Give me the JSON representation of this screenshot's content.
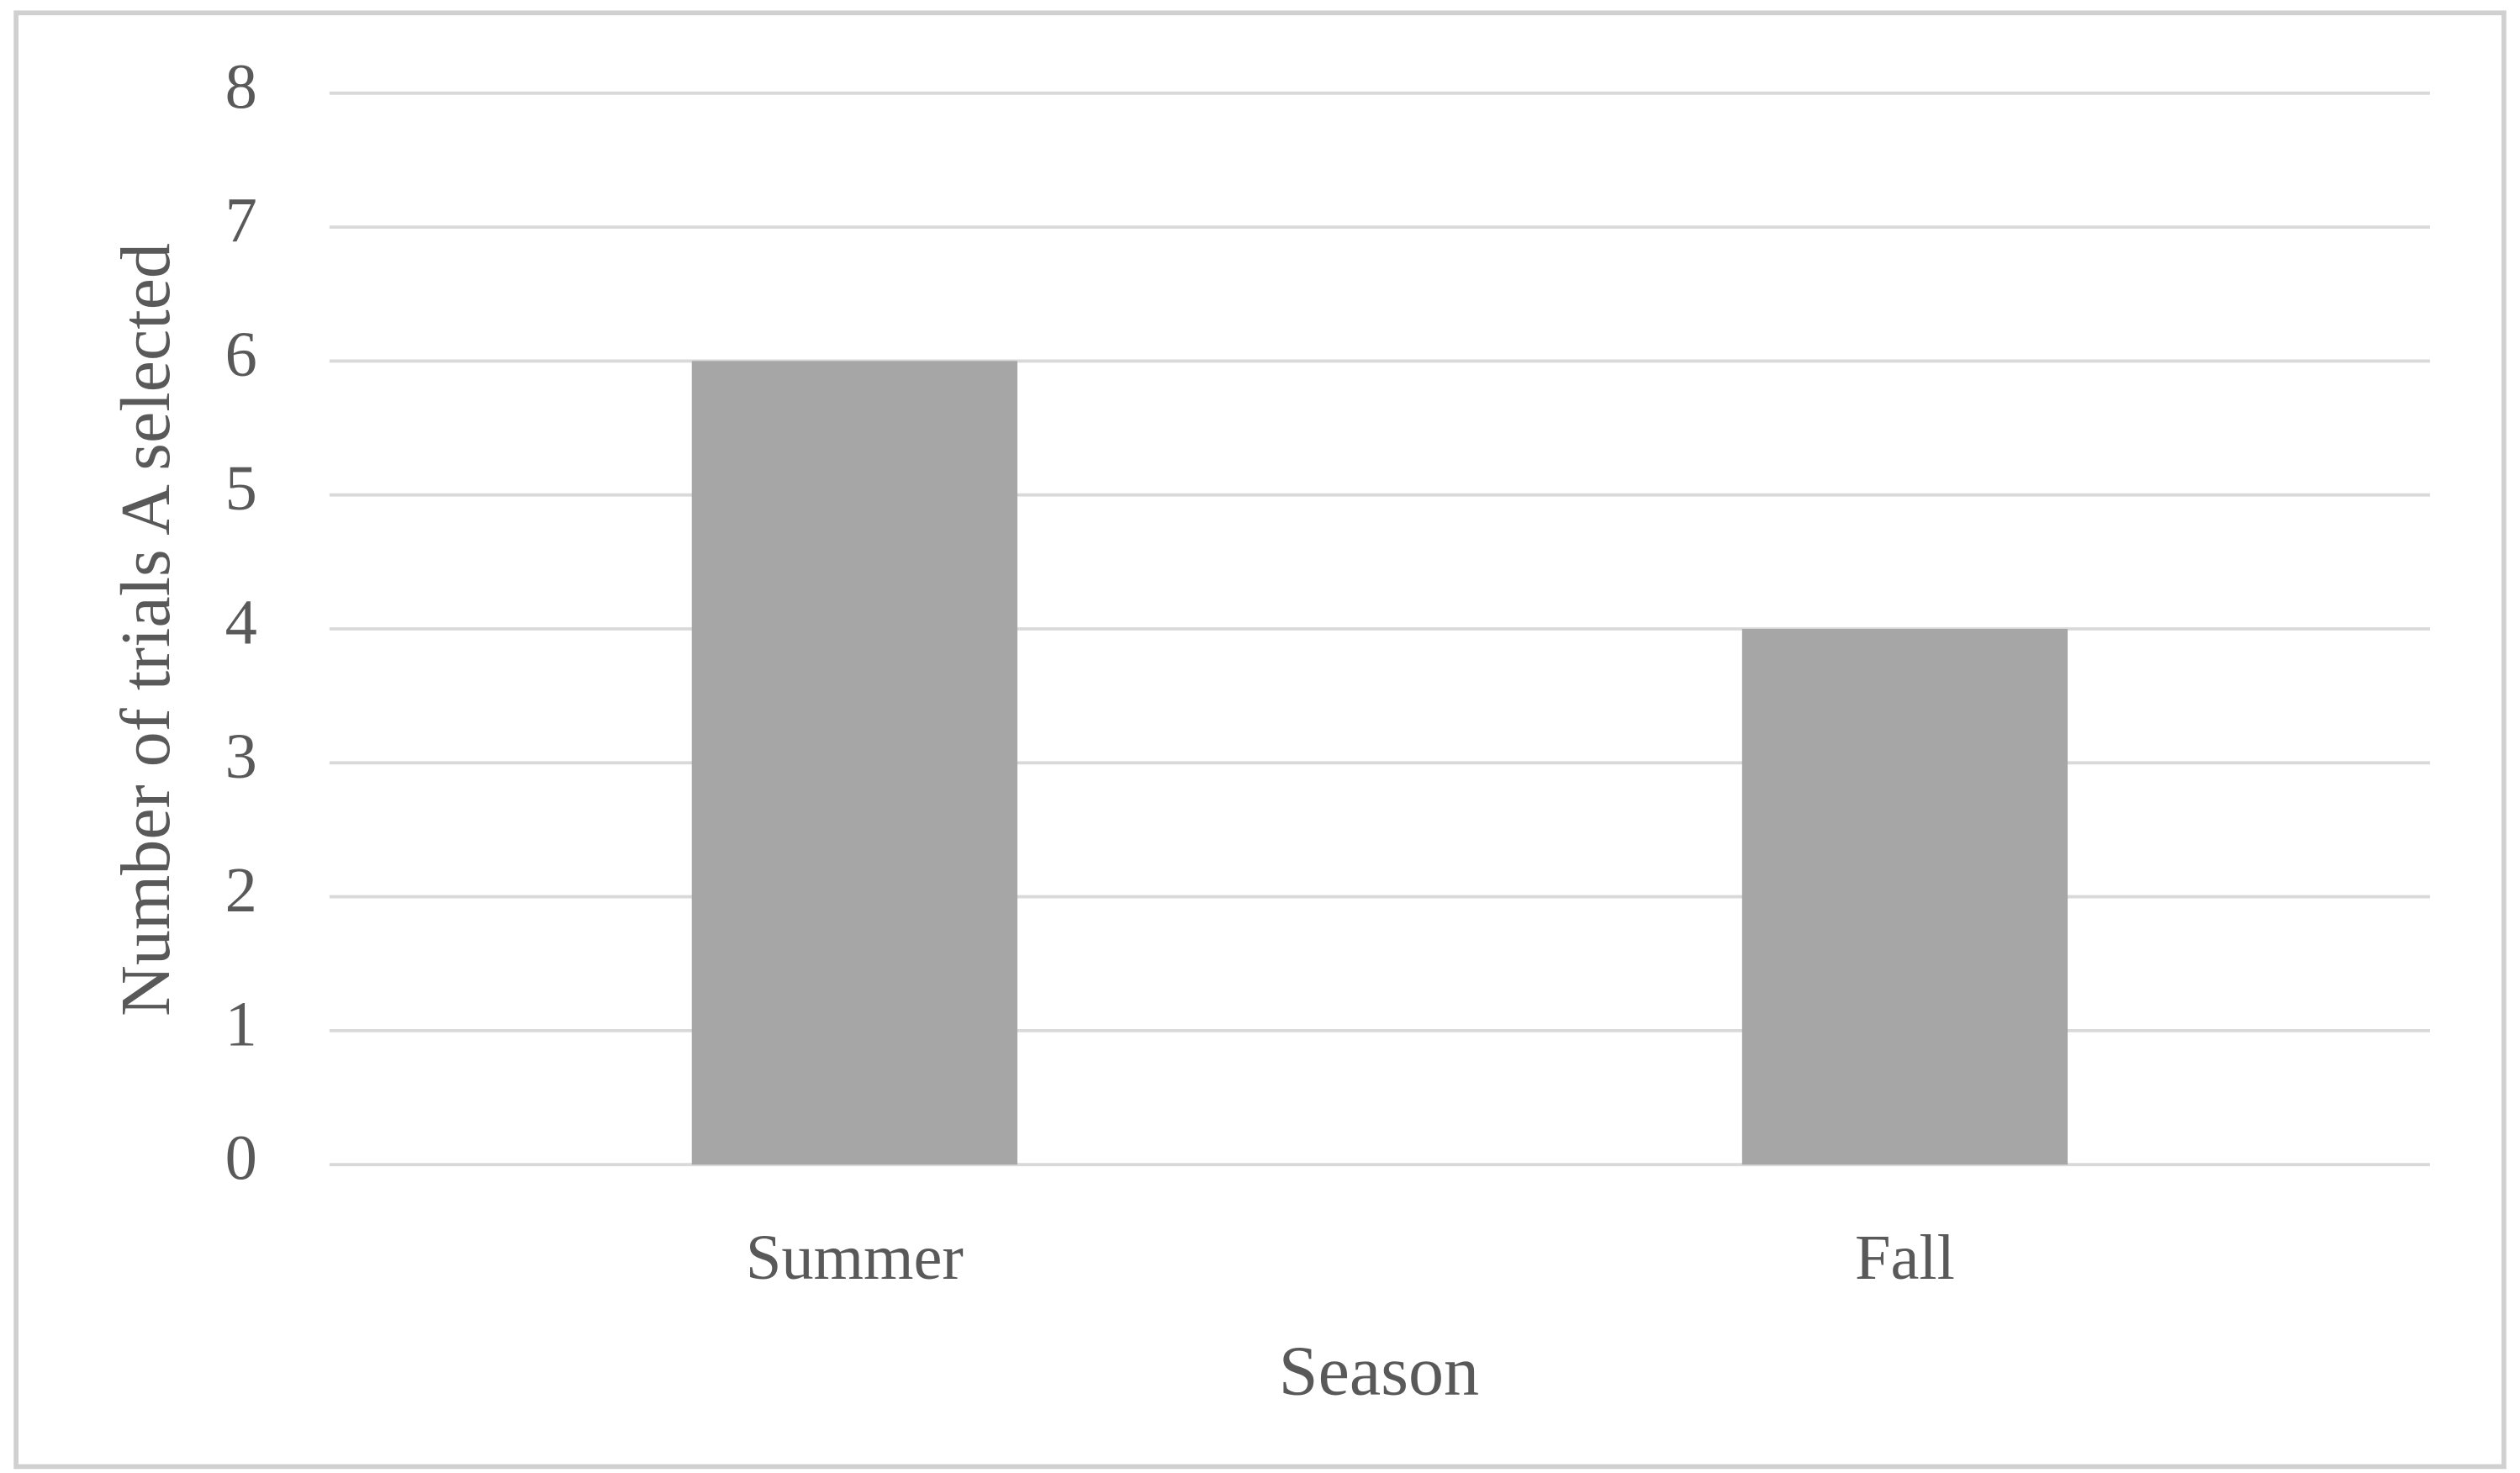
{
  "chart_data": {
    "type": "bar",
    "x_label": "Season",
    "y_label": "Number of trials A selected",
    "categories": [
      "Summer",
      "Fall"
    ],
    "values": [
      6,
      4
    ],
    "color": "#a6a6a6",
    "ylim": [
      0,
      8
    ],
    "yticks": [
      0,
      1,
      2,
      3,
      4,
      5,
      6,
      7,
      8
    ],
    "grid": true
  }
}
